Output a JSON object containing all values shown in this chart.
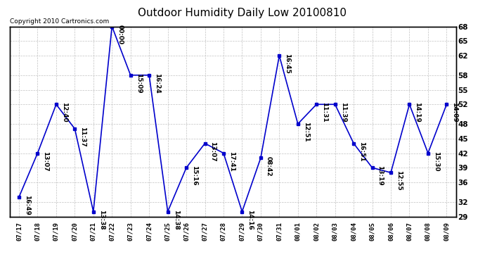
{
  "title": "Outdoor Humidity Daily Low 20100810",
  "copyright": "Copyright 2010 Cartronics.com",
  "x_labels": [
    "07/17",
    "07/18",
    "07/19",
    "07/20",
    "07/21",
    "07/22",
    "07/23",
    "07/24",
    "07/25",
    "07/26",
    "07/27",
    "07/28",
    "07/29",
    "07/30",
    "07/31",
    "08/01",
    "08/02",
    "08/03",
    "08/04",
    "08/05",
    "08/06",
    "08/07",
    "08/08",
    "08/09"
  ],
  "y_values": [
    33,
    42,
    52,
    47,
    30,
    68,
    58,
    58,
    30,
    39,
    44,
    42,
    30,
    41,
    62,
    48,
    52,
    52,
    44,
    39,
    38,
    52,
    42,
    52
  ],
  "time_labels": [
    "16:49",
    "13:07",
    "12:40",
    "11:37",
    "13:38",
    "00:00",
    "15:09",
    "16:24",
    "14:38",
    "15:16",
    "13:07",
    "17:41",
    "14:16",
    "08:42",
    "16:45",
    "12:51",
    "11:31",
    "11:39",
    "16:51",
    "13:19",
    "12:55",
    "14:19",
    "15:30",
    "14:09"
  ],
  "line_color": "#0000cc",
  "marker_color": "#0000cc",
  "background_color": "#ffffff",
  "grid_color": "#bbbbbb",
  "ylim": [
    29,
    68
  ],
  "yticks": [
    29,
    32,
    36,
    39,
    42,
    45,
    48,
    52,
    55,
    58,
    62,
    65,
    68
  ],
  "title_fontsize": 11,
  "label_fontsize": 6.5,
  "copyright_fontsize": 6.5
}
